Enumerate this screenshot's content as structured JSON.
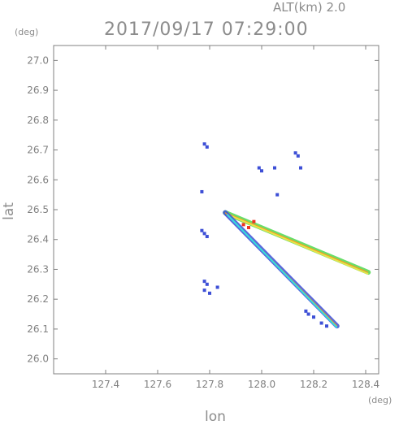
{
  "chart_data": {
    "type": "scatter",
    "title": "2017/09/17 07:29:00",
    "subtitle": "ALT(km)  2.0",
    "xlabel": "lon",
    "ylabel": "lat",
    "x_unit": "(deg)",
    "y_unit": "(deg)",
    "xlim": [
      127.2,
      128.45
    ],
    "ylim": [
      25.95,
      27.05
    ],
    "xticks": [
      "127.4",
      "127.6",
      "127.8",
      "128.0",
      "128.2",
      "128.4"
    ],
    "yticks": [
      "26.0",
      "26.1",
      "26.2",
      "26.3",
      "26.4",
      "26.5",
      "26.6",
      "26.7",
      "26.8",
      "26.9",
      "27.0"
    ],
    "grid": false,
    "colors": {
      "axis": "#808080",
      "blue": "#3d4fd6",
      "red": "#ee3322",
      "orange": "#ff9a1a",
      "yellow": "#e9e24a",
      "green": "#4fd84f",
      "cyan": "#33e0dd"
    },
    "series": [
      {
        "points": [
          [
            127.79,
            26.71
          ],
          [
            127.78,
            26.72
          ],
          [
            127.99,
            26.64
          ],
          [
            128.0,
            26.63
          ],
          [
            128.05,
            26.64
          ],
          [
            128.13,
            26.69
          ],
          [
            128.14,
            26.68
          ],
          [
            128.15,
            26.64
          ],
          [
            128.06,
            26.55
          ],
          [
            127.77,
            26.56
          ],
          [
            127.77,
            26.43
          ],
          [
            127.78,
            26.42
          ],
          [
            127.79,
            26.41
          ],
          [
            127.78,
            26.26
          ],
          [
            127.79,
            26.25
          ],
          [
            127.78,
            26.23
          ],
          [
            127.8,
            26.22
          ],
          [
            127.83,
            26.24
          ],
          [
            128.17,
            26.16
          ],
          [
            128.18,
            26.15
          ],
          [
            128.2,
            26.14
          ],
          [
            128.23,
            26.12
          ],
          [
            128.25,
            26.11
          ]
        ]
      },
      {
        "points": [
          [
            127.93,
            26.45
          ],
          [
            127.95,
            26.44
          ],
          [
            127.97,
            26.46
          ]
        ]
      }
    ],
    "beams": [
      {
        "start": [
          127.86,
          26.49
        ],
        "end": [
          128.41,
          26.29
        ]
      },
      {
        "start": [
          127.86,
          26.49
        ],
        "end": [
          128.29,
          26.11
        ]
      }
    ]
  }
}
